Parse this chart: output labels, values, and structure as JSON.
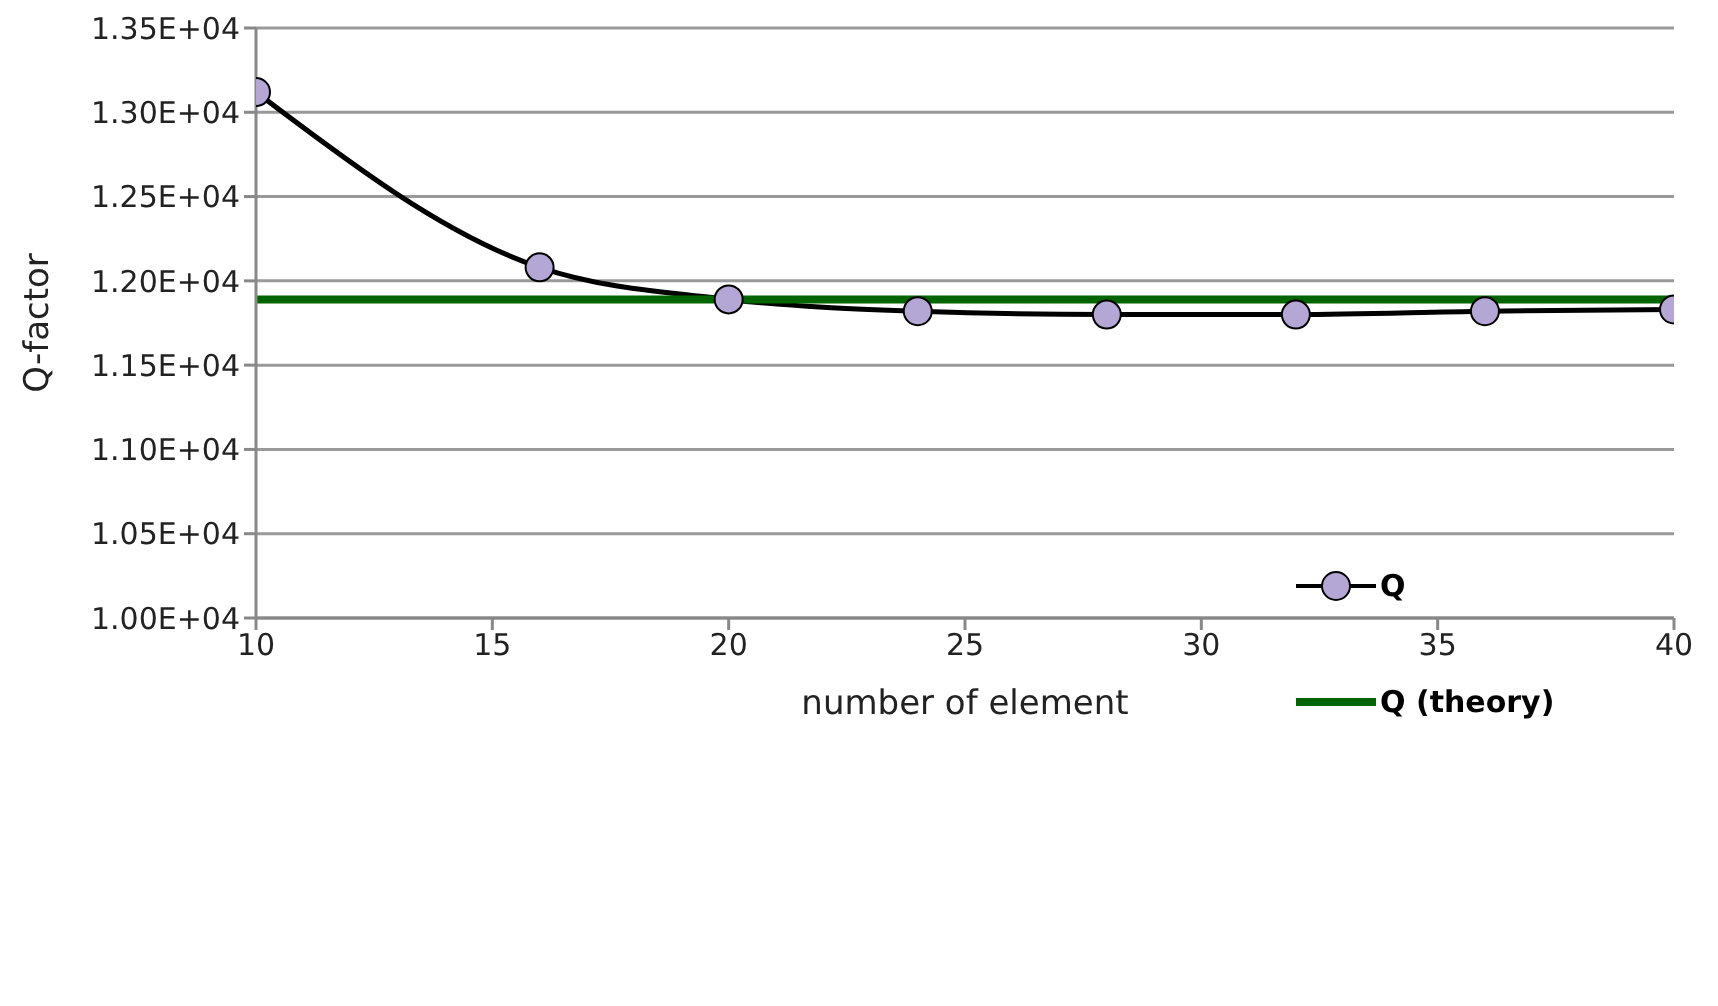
{
  "chart_data": {
    "type": "line",
    "xlabel": "number of element",
    "ylabel": "Q-factor",
    "xlim": [
      10,
      40
    ],
    "xticks": [
      10,
      15,
      20,
      25,
      30,
      35,
      40
    ],
    "ylim": [
      10000,
      13500
    ],
    "yticks": [
      {
        "value": 10000,
        "label": "1.00E+04"
      },
      {
        "value": 10500,
        "label": "1.05E+04"
      },
      {
        "value": 11000,
        "label": "1.10E+04"
      },
      {
        "value": 11500,
        "label": "1.15E+04"
      },
      {
        "value": 12000,
        "label": "1.20E+04"
      },
      {
        "value": 12500,
        "label": "1.25E+04"
      },
      {
        "value": 13000,
        "label": "1.30E+04"
      },
      {
        "value": 13500,
        "label": "1.35E+04"
      }
    ],
    "grid": "y",
    "legend": "right",
    "series": [
      {
        "name": "Q",
        "color": "#000000",
        "marker": "circle",
        "x": [
          10,
          16,
          20,
          24,
          28,
          32,
          36,
          40
        ],
        "values": [
          13120,
          12080,
          11890,
          11820,
          11800,
          11800,
          11820,
          11830
        ]
      },
      {
        "name": "Q (theory)",
        "color": "#006400",
        "marker": "none",
        "x": [
          10,
          40
        ],
        "values": [
          11890,
          11890
        ]
      }
    ]
  }
}
